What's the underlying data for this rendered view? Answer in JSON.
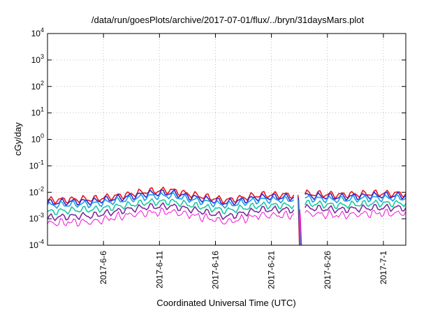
{
  "chart_data": {
    "type": "line",
    "title": "/data/run/goesPlots/archive/2017-07-01/flux/../bryn/31daysMars.plot",
    "xlabel": "Coordinated Universal Time (UTC)",
    "ylabel": "cGy/day",
    "y_scale": "log",
    "ylim": [
      0.0001,
      10000
    ],
    "y_ticks": [
      {
        "base": "10",
        "exp": "-4"
      },
      {
        "base": "10",
        "exp": "-3"
      },
      {
        "base": "10",
        "exp": "-2"
      },
      {
        "base": "10",
        "exp": "-1"
      },
      {
        "base": "10",
        "exp": "0"
      },
      {
        "base": "10",
        "exp": "1"
      },
      {
        "base": "10",
        "exp": "2"
      },
      {
        "base": "10",
        "exp": "3"
      },
      {
        "base": "10",
        "exp": "4"
      }
    ],
    "x_start": "2017-06-01",
    "x_end": "2017-07-03",
    "x_ticks": [
      "2017-6-6",
      "2017-6-11",
      "2017-6-16",
      "2017-6-21",
      "2017-6-26",
      "2017-7-1"
    ],
    "grid": true,
    "data_gap": {
      "from": "2017-06-23",
      "to": "2017-06-24"
    },
    "series": [
      {
        "color": "#e8161b",
        "segments": [
          {
            "x": [
              "2017-06-01",
              "2017-06-04",
              "2017-06-05",
              "2017-06-08",
              "2017-06-10",
              "2017-06-12",
              "2017-06-14",
              "2017-06-17",
              "2017-06-20",
              "2017-06-23"
            ],
            "y": [
              0.005,
              0.0055,
              0.0055,
              0.008,
              0.011,
              0.012,
              0.008,
              0.005,
              0.008,
              0.008
            ]
          },
          {
            "x": [
              "2017-06-24",
              "2017-06-27",
              "2017-06-30",
              "2017-07-03"
            ],
            "y": [
              0.009,
              0.008,
              0.009,
              0.009
            ]
          }
        ]
      },
      {
        "color": "#2b2bd6",
        "segments": [
          {
            "x": [
              "2017-06-01",
              "2017-06-04",
              "2017-06-05",
              "2017-06-08",
              "2017-06-10",
              "2017-06-12",
              "2017-06-14",
              "2017-06-17",
              "2017-06-20",
              "2017-06-23"
            ],
            "y": [
              0.004,
              0.0045,
              0.0045,
              0.0065,
              0.009,
              0.0095,
              0.0065,
              0.004,
              0.0065,
              0.0065
            ]
          },
          {
            "x": [
              "2017-06-24",
              "2017-06-27",
              "2017-06-30",
              "2017-07-03"
            ],
            "y": [
              0.0075,
              0.0065,
              0.0075,
              0.0075
            ]
          }
        ]
      },
      {
        "color": "#1fa0e0",
        "segments": [
          {
            "x": [
              "2017-06-01",
              "2017-06-04",
              "2017-06-05",
              "2017-06-08",
              "2017-06-10",
              "2017-06-12",
              "2017-06-14",
              "2017-06-17",
              "2017-06-20",
              "2017-06-23"
            ],
            "y": [
              0.0032,
              0.0036,
              0.0036,
              0.0052,
              0.007,
              0.0075,
              0.0052,
              0.0032,
              0.0052,
              0.0052
            ]
          },
          {
            "x": [
              "2017-06-24",
              "2017-06-27",
              "2017-06-30",
              "2017-07-03"
            ],
            "y": [
              0.006,
              0.0052,
              0.006,
              0.006
            ]
          }
        ]
      },
      {
        "color": "#1bc9a4",
        "segments": [
          {
            "x": [
              "2017-06-01",
              "2017-06-04",
              "2017-06-05",
              "2017-06-08",
              "2017-06-10",
              "2017-06-12",
              "2017-06-14",
              "2017-06-17",
              "2017-06-20",
              "2017-06-23"
            ],
            "y": [
              0.0018,
              0.0022,
              0.0022,
              0.0032,
              0.0042,
              0.0045,
              0.0032,
              0.002,
              0.0032,
              0.0032
            ]
          },
          {
            "x": [
              "2017-06-24",
              "2017-06-27",
              "2017-06-30",
              "2017-07-03"
            ],
            "y": [
              0.0038,
              0.0032,
              0.0038,
              0.0038
            ]
          }
        ]
      },
      {
        "color": "#7b2d9e",
        "segments": [
          {
            "x": [
              "2017-06-01",
              "2017-06-04",
              "2017-06-05",
              "2017-06-08",
              "2017-06-10",
              "2017-06-12",
              "2017-06-14",
              "2017-06-17",
              "2017-06-20",
              "2017-06-23"
            ],
            "y": [
              0.0011,
              0.0013,
              0.0013,
              0.0022,
              0.0028,
              0.003,
              0.0022,
              0.0012,
              0.0022,
              0.0022
            ]
          },
          {
            "x": [
              "2017-06-24",
              "2017-06-27",
              "2017-06-30",
              "2017-07-03"
            ],
            "y": [
              0.0026,
              0.0022,
              0.0026,
              0.0026
            ]
          }
        ]
      },
      {
        "color": "#f216d6",
        "segments": [
          {
            "x": [
              "2017-06-01",
              "2017-06-04",
              "2017-06-05",
              "2017-06-08",
              "2017-06-10",
              "2017-06-12",
              "2017-06-14",
              "2017-06-17",
              "2017-06-20",
              "2017-06-23"
            ],
            "y": [
              0.0008,
              0.0009,
              0.0009,
              0.0016,
              0.002,
              0.0022,
              0.0016,
              0.0009,
              0.0016,
              0.0016
            ]
          },
          {
            "x": [
              "2017-06-24",
              "2017-06-27",
              "2017-06-30",
              "2017-07-03"
            ],
            "y": [
              0.0019,
              0.0016,
              0.0019,
              0.0019
            ]
          }
        ]
      }
    ]
  }
}
